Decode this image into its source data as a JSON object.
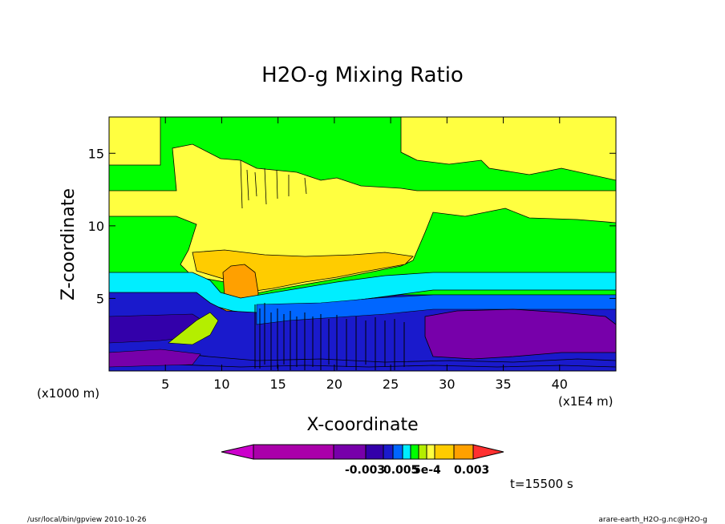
{
  "chart_data": {
    "type": "heatmap",
    "title": "H2O-g Mixing Ratio",
    "xlabel": "X-coordinate",
    "ylabel": "Z-coordinate",
    "x_unit_left": "(x1000 m)",
    "x_unit_right": "(x1E4 m)",
    "xlim": [
      0,
      45
    ],
    "ylim": [
      0,
      17.5
    ],
    "x_ticks": [
      "5",
      "10",
      "15",
      "20",
      "25",
      "30",
      "35",
      "40"
    ],
    "y_ticks": [
      "5",
      "10",
      "15"
    ],
    "colorbar_labels": [
      "-0.003",
      "0.005",
      "5e-4",
      "0.003"
    ],
    "time_label": "t=15500 s",
    "footer_left": "/usr/local/bin/gpview  2010-10-26",
    "footer_right": "arare-earth_H2O-g.nc@H2O-g",
    "palette": [
      "#cc00cc",
      "#aa00aa",
      "#7700aa",
      "#3300aa",
      "#1a1acc",
      "#0066ff",
      "#00eeff",
      "#00ff00",
      "#b4ee00",
      "#ffff40",
      "#ffcc00",
      "#ffa000",
      "#ff3030"
    ],
    "fill_levels": [
      {
        "name": "upper-yellow",
        "color": "#ffff40"
      },
      {
        "name": "upper-green",
        "color": "#00ff00"
      },
      {
        "name": "anvil-yellow",
        "color": "#ffff40"
      },
      {
        "name": "anvil-orange",
        "color": "#ffcc00"
      },
      {
        "name": "tower-orange",
        "color": "#ffa000"
      },
      {
        "name": "cyan-band",
        "color": "#00eeff"
      },
      {
        "name": "blue-band",
        "color": "#1a1acc"
      },
      {
        "name": "deep-purple",
        "color": "#7700aa"
      }
    ]
  }
}
